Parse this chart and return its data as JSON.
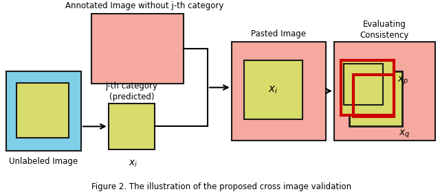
{
  "bg_color": "#ffffff",
  "salmon_color": "#F5A99F",
  "yellow_color": "#D8DC6A",
  "blue_color": "#7ECFE8",
  "red_color": "#CC0000",
  "dark_outline": "#1a1a1a",
  "caption": "Figure 2. The illustration of the proposed cross image validation",
  "title_annotated": "Annotated Image without j-th category",
  "title_pasted": "Pasted Image",
  "title_eval": "Evaluating\nConsistency",
  "label_unlabeled": "Unlabeled Image",
  "label_jth": "j-th category\n(predicted)",
  "label_xi_small": "$x_i$",
  "label_xi_pasted": "$x_i$",
  "label_xp": "$x_p$",
  "label_xq": "$x_q$",
  "figsize": [
    6.4,
    2.83
  ],
  "dpi": 100
}
